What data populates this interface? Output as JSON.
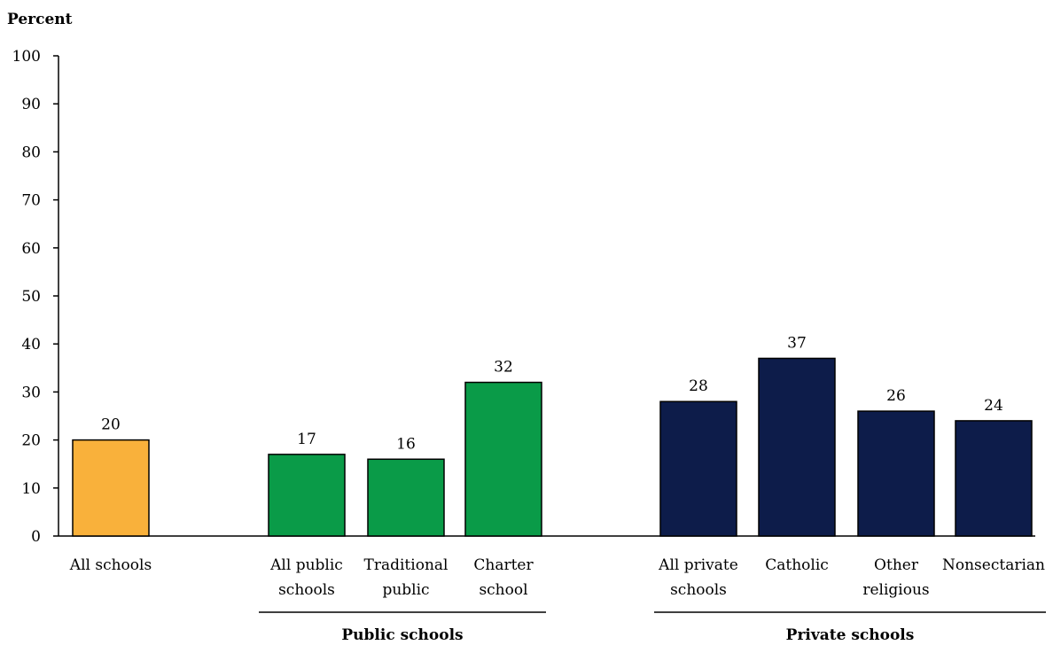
{
  "chart_data": {
    "type": "bar",
    "ylabel": "Percent",
    "ylim": [
      0,
      100
    ],
    "yticks": [
      0,
      10,
      20,
      30,
      40,
      50,
      60,
      70,
      80,
      90,
      100
    ],
    "grid": false,
    "bars": [
      {
        "label": [
          "All schools"
        ],
        "value": 20,
        "color": "#F9B13B",
        "group": null
      },
      {
        "label": [
          "All public",
          "schools"
        ],
        "value": 17,
        "color": "#0A9B48",
        "group": "public"
      },
      {
        "label": [
          "Traditional",
          "public"
        ],
        "value": 16,
        "color": "#0A9B48",
        "group": "public"
      },
      {
        "label": [
          "Charter",
          "school"
        ],
        "value": 32,
        "color": "#0A9B48",
        "group": "public"
      },
      {
        "label": [
          "All private",
          "schools"
        ],
        "value": 28,
        "color": "#0D1C4A",
        "group": "private"
      },
      {
        "label": [
          "Catholic"
        ],
        "value": 37,
        "color": "#0D1C4A",
        "group": "private"
      },
      {
        "label": [
          "Other",
          "religious"
        ],
        "value": 26,
        "color": "#0D1C4A",
        "group": "private"
      },
      {
        "label": [
          "Nonsectarian"
        ],
        "value": 24,
        "color": "#0D1C4A",
        "group": "private"
      }
    ],
    "groups": [
      {
        "id": "public",
        "label": "Public schools"
      },
      {
        "id": "private",
        "label": "Private schools"
      }
    ]
  }
}
